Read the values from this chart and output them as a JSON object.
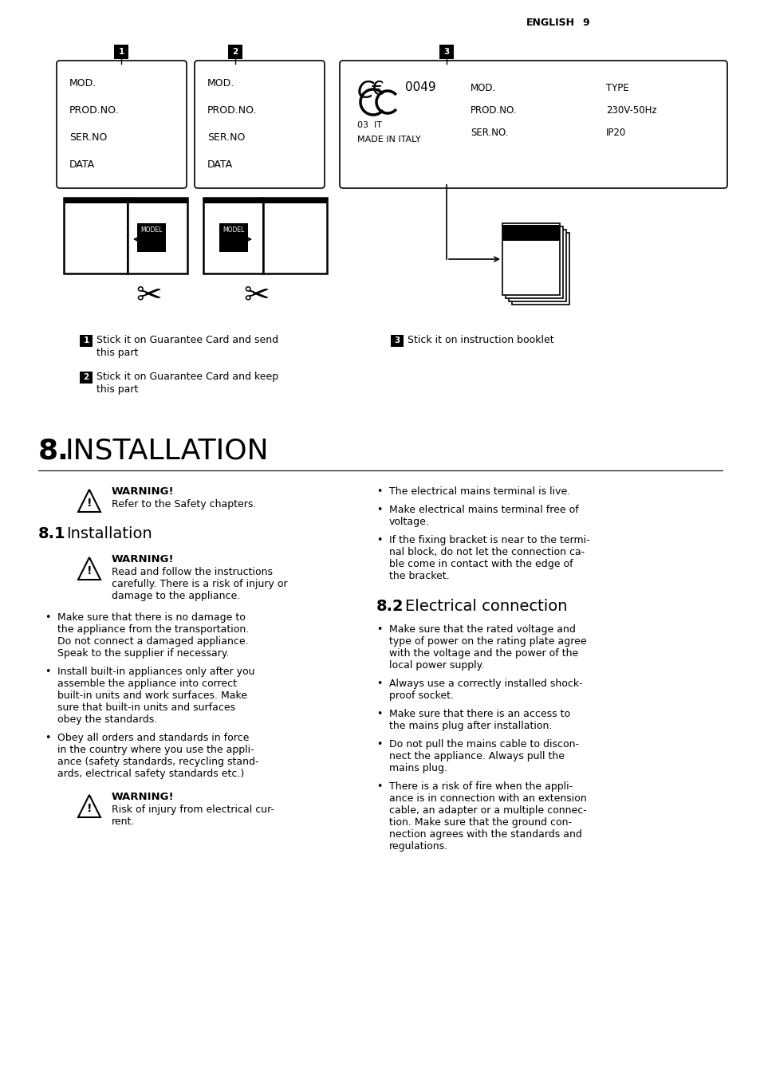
{
  "bg_color": "#ffffff",
  "header_text": "ENGLISH",
  "header_page": "9",
  "box1_lines": [
    "MOD.",
    "PROD.NO.",
    "SER.NO",
    "DATA"
  ],
  "box2_lines": [
    "MOD.",
    "PROD.NO.",
    "SER.NO",
    "DATA"
  ],
  "box3_ce": "0049",
  "box3_sub1": "03  IT",
  "box3_sub2": "MADE IN ITALY",
  "box3_col1": [
    "MOD.",
    "PROD.NO.",
    "SER.NO."
  ],
  "box3_col2": [
    "TYPE",
    "230V-50Hz",
    "IP20"
  ],
  "captions": [
    {
      "num": "1",
      "text1": "Stick it on Guarantee Card and send",
      "text2": "this part"
    },
    {
      "num": "2",
      "text1": "Stick it on Guarantee Card and keep",
      "text2": "this part"
    },
    {
      "num": "3",
      "text1": "Stick it on instruction booklet",
      "text2": ""
    }
  ],
  "sec8_bold": "8.",
  "sec8_normal": "INSTALLATION",
  "warn1_bold": "WARNING!",
  "warn1_text": "Refer to the Safety chapters.",
  "sec81_bold": "8.1",
  "sec81_normal": "Installation",
  "warn2_bold": "WARNING!",
  "warn2_lines": [
    "Read and follow the instructions",
    "carefully. There is a risk of injury or",
    "damage to the appliance."
  ],
  "bullets_left": [
    [
      "Make sure that there is no damage to",
      "the appliance from the transportation.",
      "Do not connect a damaged appliance.",
      "Speak to the supplier if necessary."
    ],
    [
      "Install built-in appliances only after you",
      "assemble the appliance into correct",
      "built-in units and work surfaces. Make",
      "sure that built-in units and surfaces",
      "obey the standards."
    ],
    [
      "Obey all orders and standards in force",
      "in the country where you use the appli-",
      "ance (safety standards, recycling stand-",
      "ards, electrical safety standards etc.)"
    ]
  ],
  "warn3_bold": "WARNING!",
  "warn3_lines": [
    "Risk of injury from electrical cur-",
    "rent."
  ],
  "right_bullets_top": [
    [
      "The electrical mains terminal is live."
    ],
    [
      "Make electrical mains terminal free of",
      "voltage."
    ],
    [
      "If the fixing bracket is near to the termi-",
      "nal block, do not let the connection ca-",
      "ble come in contact with the edge of",
      "the bracket."
    ]
  ],
  "sec82_bold": "8.2",
  "sec82_normal": "Electrical connection",
  "right_bullets_bot": [
    [
      "Make sure that the rated voltage and",
      "type of power on the rating plate agree",
      "with the voltage and the power of the",
      "local power supply."
    ],
    [
      "Always use a correctly installed shock-",
      "proof socket."
    ],
    [
      "Make sure that there is an access to",
      "the mains plug after installation."
    ],
    [
      "Do not pull the mains cable to discon-",
      "nect the appliance. Always pull the",
      "mains plug."
    ],
    [
      "There is a risk of fire when the appli-",
      "ance is in connection with an extension",
      "cable, an adapter or a multiple connec-",
      "tion. Make sure that the ground con-",
      "nection agrees with the standards and",
      "regulations."
    ]
  ]
}
